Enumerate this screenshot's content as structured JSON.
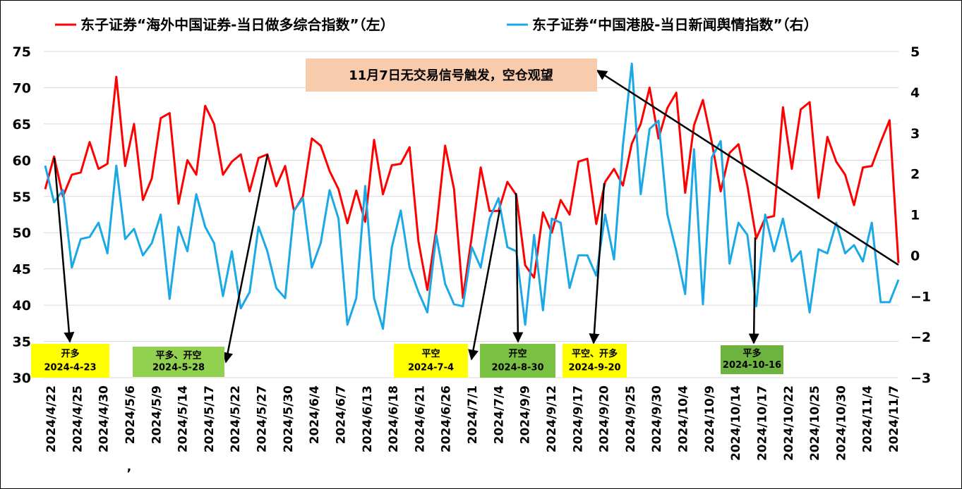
{
  "chart_data": {
    "type": "line",
    "legend": {
      "placement": "top",
      "left_series": "东子证券“海外中国证券-当日做多综合指数”（左）",
      "right_series": "东子证券“中国港股-当日新闻舆情指数”（右）"
    },
    "y_left": {
      "min": 30,
      "max": 75,
      "step": 5,
      "ticks": [
        "30",
        "35",
        "40",
        "45",
        "50",
        "55",
        "60",
        "65",
        "70",
        "75"
      ]
    },
    "y_right": {
      "min": -3,
      "max": 5,
      "step": 1,
      "ticks": [
        "−3",
        "−2",
        "−1",
        "0",
        "1",
        "2",
        "3",
        "4",
        "5"
      ]
    },
    "x_tick_labels": [
      "2024/4/22",
      "2024/4/25",
      "2024/4/30",
      "2024/5/6",
      "2024/5/9",
      "2024/5/14",
      "2024/5/17",
      "2024/5/22",
      "2024/5/27",
      "2024/5/30",
      "2024/6/4",
      "2024/6/7",
      "2024/6/13",
      "2024/6/18",
      "2024/6/21",
      "2024/6/26",
      "2024/7/1",
      "2024/7/4",
      "2024/9/9",
      "2024/9/12",
      "2024/9/17",
      "2024/9/20",
      "2024/9/25",
      "2024/9/30",
      "2024/10/4",
      "2024/10/9",
      "2024/10/14",
      "2024/10/17",
      "2024/10/22",
      "2024/10/25",
      "2024/10/30",
      "2024/11/4",
      "2024/11/7"
    ],
    "x_tick_stray": ",",
    "series": [
      {
        "name": "东子证券“海外中国证券-当日做多综合指数”（左）",
        "axis": "left",
        "color": "#ff0000",
        "values": [
          56,
          60.5,
          55,
          58,
          58.3,
          62.5,
          58.8,
          59.5,
          71.5,
          59.2,
          65,
          54.5,
          57.5,
          65.8,
          66.5,
          54,
          60,
          58,
          67.5,
          65,
          58,
          59.8,
          60.8,
          55.7,
          60.3,
          60.8,
          56.4,
          59.2,
          53,
          55,
          63,
          62,
          58.5,
          56,
          51.3,
          55.8,
          51.5,
          62.8,
          55.3,
          59.3,
          59.5,
          61.8,
          48.8,
          42.1,
          50.5,
          62,
          56,
          41,
          49.5,
          59,
          53,
          53,
          57,
          55.2,
          45.5,
          43.8,
          52.8,
          50,
          54.5,
          52.5,
          59.8,
          60.2,
          51.2,
          57,
          58.8,
          56.5,
          62.3,
          65,
          70,
          63,
          67.2,
          69.3,
          55.5,
          64.8,
          68.3,
          62.5,
          55.7,
          61,
          62.2,
          56.5,
          49.2,
          52,
          52.3,
          67.3,
          58.8,
          67,
          68,
          54.8,
          63.2,
          59.8,
          58,
          53.8,
          59,
          59.2,
          62.5,
          65.5,
          45.8
        ]
      },
      {
        "name": "东子证券“中国港股-当日新闻舆情指数”（右）",
        "axis": "right",
        "color": "#1aa9e6",
        "values": [
          2.2,
          1.3,
          1.6,
          -0.3,
          0.4,
          0.45,
          0.8,
          0.05,
          2.2,
          0.4,
          0.65,
          0,
          0.3,
          1,
          -1.07,
          0.7,
          0.1,
          1.5,
          0.7,
          0.3,
          -1,
          0.1,
          -1.3,
          -0.9,
          0.7,
          0.1,
          -0.8,
          -1.05,
          1.1,
          1.4,
          -0.3,
          0.3,
          1.6,
          0.9,
          -1.7,
          -1.05,
          1.7,
          -1.05,
          -1.8,
          0.2,
          1.1,
          -0.3,
          -0.9,
          -1.4,
          0.5,
          -0.7,
          -1.2,
          -1.25,
          0.2,
          -0.3,
          0.9,
          1.4,
          0.2,
          0.1,
          -1.7,
          0.5,
          -1.35,
          0.9,
          0.8,
          -0.8,
          0,
          0,
          -0.5,
          1,
          -0.1,
          2.7,
          4.7,
          1.5,
          3.1,
          3.3,
          1,
          0.1,
          -0.95,
          2.6,
          -1.2,
          2.4,
          2.8,
          -0.2,
          0.8,
          0.5,
          -1.25,
          1,
          0.1,
          0.9,
          -0.15,
          0.1,
          -1.4,
          0.15,
          0.05,
          0.8,
          0.05,
          0.25,
          -0.15,
          0.8,
          -1.15,
          -1.15,
          -0.6
        ]
      }
    ],
    "annotations": {
      "callout": "11月7日无交易信号触发，空仓观望",
      "boxes": [
        {
          "line1": "开多",
          "line2": "2024-4-23",
          "color": "#ffff00"
        },
        {
          "line1": "平多、开空",
          "line2": "2024-5-28",
          "color": "#92d050"
        },
        {
          "line1": "平空",
          "line2": "2024-7-4",
          "color": "#ffff00"
        },
        {
          "line1": "开空",
          "line2": "2024-8-30",
          "color": "#7ac143"
        },
        {
          "line1": "平空、开多",
          "line2": "2024-9-20",
          "color": "#ffff00"
        },
        {
          "line1": "平多",
          "line2": "2024-10-16",
          "color": "#6db33f"
        }
      ]
    }
  }
}
